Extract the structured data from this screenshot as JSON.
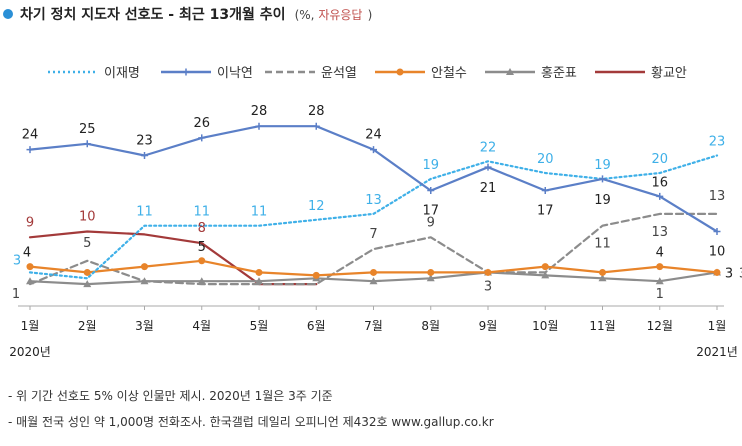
{
  "header": {
    "title": "차기 정치 지도자 선호도 - 최근 13개월 추이",
    "unit_prefix": "(%, ",
    "unit_note": "자유응답",
    "unit_suffix": ")"
  },
  "chart_data": {
    "type": "line",
    "title": "차기 정치 지도자 선호도 - 최근 13개월 추이 (%, 자유응답)",
    "categories": [
      "1월",
      "2월",
      "3월",
      "4월",
      "5월",
      "6월",
      "7월",
      "8월",
      "9월",
      "10월",
      "11월",
      "12월",
      "1월"
    ],
    "year_labels": {
      "start": "2020년",
      "end": "2021년"
    },
    "xlabel": "",
    "ylabel": "%",
    "ylim": [
      0,
      30
    ],
    "grid": false,
    "legend_position": "top",
    "series": [
      {
        "name": "이재명",
        "color": "#3fb0e8",
        "dash": "dotted",
        "marker": "none",
        "values": [
          3,
          2,
          11,
          11,
          11,
          12,
          13,
          19,
          22,
          20,
          19,
          20,
          23
        ]
      },
      {
        "name": "이낙연",
        "color": "#5b7fc7",
        "dash": "solid",
        "marker": "plus",
        "values": [
          24,
          25,
          23,
          26,
          28,
          28,
          24,
          17,
          21,
          17,
          19,
          16,
          10
        ]
      },
      {
        "name": "윤석열",
        "color": "#8c8c8c",
        "dash": "dashed",
        "marker": "none",
        "values": [
          1,
          5,
          1.5,
          1,
          1,
          1,
          7,
          9,
          3,
          3,
          11,
          13,
          13
        ]
      },
      {
        "name": "안철수",
        "color": "#e8842a",
        "dash": "solid",
        "marker": "dot",
        "values": [
          4,
          3,
          4,
          5,
          3,
          2.5,
          3,
          3,
          3,
          4,
          3,
          4,
          3
        ]
      },
      {
        "name": "홍준표",
        "color": "#8c8c8c",
        "dash": "solid",
        "marker": "triangle",
        "values": [
          1.5,
          1,
          1.5,
          1.5,
          1.5,
          2,
          1.5,
          2,
          3,
          2.5,
          2,
          1.5,
          3
        ]
      },
      {
        "name": "황교안",
        "color": "#a33a3a",
        "dash": "solid",
        "marker": "none",
        "values": [
          9,
          10,
          9.5,
          8,
          1,
          1,
          null,
          null,
          null,
          null,
          null,
          null,
          null
        ]
      }
    ],
    "annotations": [
      {
        "series": "이재명",
        "index": 0,
        "text": "3"
      },
      {
        "series": "이재명",
        "index": 2,
        "text": "11"
      },
      {
        "series": "이재명",
        "index": 3,
        "text": "11"
      },
      {
        "series": "이재명",
        "index": 4,
        "text": "11"
      },
      {
        "series": "이재명",
        "index": 5,
        "text": "12"
      },
      {
        "series": "이재명",
        "index": 6,
        "text": "13"
      },
      {
        "series": "이재명",
        "index": 7,
        "text": "19"
      },
      {
        "series": "이재명",
        "index": 8,
        "text": "22"
      },
      {
        "series": "이재명",
        "index": 9,
        "text": "20"
      },
      {
        "series": "이재명",
        "index": 10,
        "text": "19"
      },
      {
        "series": "이재명",
        "index": 11,
        "text": "20"
      },
      {
        "series": "이재명",
        "index": 12,
        "text": "23"
      },
      {
        "series": "이낙연",
        "index": 0,
        "text": "24"
      },
      {
        "series": "이낙연",
        "index": 1,
        "text": "25"
      },
      {
        "series": "이낙연",
        "index": 2,
        "text": "23"
      },
      {
        "series": "이낙연",
        "index": 3,
        "text": "26"
      },
      {
        "series": "이낙연",
        "index": 4,
        "text": "28"
      },
      {
        "series": "이낙연",
        "index": 5,
        "text": "28"
      },
      {
        "series": "이낙연",
        "index": 6,
        "text": "24"
      },
      {
        "series": "이낙연",
        "index": 7,
        "text": "17"
      },
      {
        "series": "이낙연",
        "index": 8,
        "text": "21"
      },
      {
        "series": "이낙연",
        "index": 9,
        "text": "17"
      },
      {
        "series": "이낙연",
        "index": 10,
        "text": "19"
      },
      {
        "series": "이낙연",
        "index": 11,
        "text": "16"
      },
      {
        "series": "이낙연",
        "index": 12,
        "text": "10"
      },
      {
        "series": "윤석열",
        "index": 0,
        "text": "1"
      },
      {
        "series": "윤석열",
        "index": 1,
        "text": "5"
      },
      {
        "series": "윤석열",
        "index": 6,
        "text": "7"
      },
      {
        "series": "윤석열",
        "index": 7,
        "text": "9"
      },
      {
        "series": "윤석열",
        "index": 8,
        "text": "3"
      },
      {
        "series": "윤석열",
        "index": 10,
        "text": "11"
      },
      {
        "series": "윤석열",
        "index": 11,
        "text": "13"
      },
      {
        "series": "윤석열",
        "index": 12,
        "text": "13"
      },
      {
        "series": "안철수",
        "index": 0,
        "text": "4"
      },
      {
        "series": "안철수",
        "index": 3,
        "text": "5"
      },
      {
        "series": "안철수",
        "index": 11,
        "text": "4"
      },
      {
        "series": "안철수",
        "index": 12,
        "text": "3"
      },
      {
        "series": "홍준표",
        "index": 11,
        "text": "1"
      },
      {
        "series": "홍준표",
        "index": 12,
        "text": "3"
      },
      {
        "series": "황교안",
        "index": 0,
        "text": "9"
      },
      {
        "series": "황교안",
        "index": 1,
        "text": "10"
      },
      {
        "series": "황교안",
        "index": 3,
        "text": "8"
      }
    ]
  },
  "notes": [
    "- 위 기간 선호도 5% 이상 인물만 제시. 2020년 1월은 3주 기준",
    "- 매월 전국 성인 약 1,000명 전화조사. 한국갤럽 데일리 오피니언 제432호 www.gallup.co.kr"
  ]
}
